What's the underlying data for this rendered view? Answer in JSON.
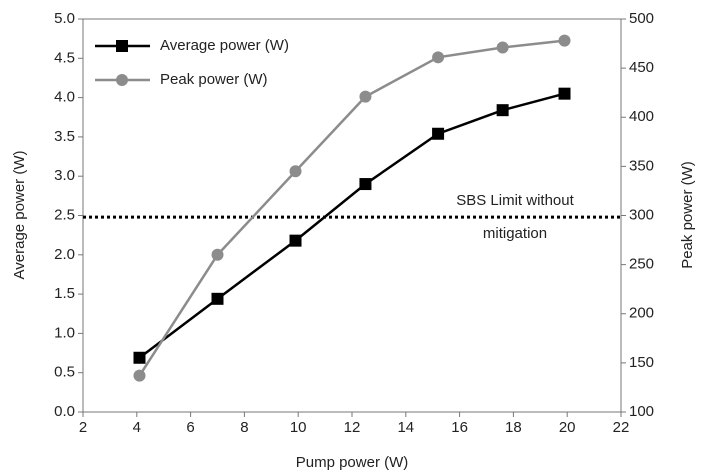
{
  "chart_data": {
    "type": "line",
    "x_label": "Pump power (W)",
    "y_label": "Average power (W)",
    "y2_label": "Peak power (W)",
    "xlim": [
      2,
      22
    ],
    "xticks": [
      2,
      4,
      6,
      8,
      10,
      12,
      14,
      16,
      18,
      20,
      22
    ],
    "ylim": [
      0,
      5
    ],
    "yticks": [
      {
        "value": 0,
        "label": "0.0"
      },
      0.5,
      {
        "value": 1,
        "label": "1.0"
      },
      1.5,
      {
        "value": 2,
        "label": "2.0"
      },
      2.5,
      {
        "value": 3,
        "label": "3.0"
      },
      3.5,
      {
        "value": 4,
        "label": "4.0"
      },
      4.5,
      {
        "value": 5,
        "label": "5.0"
      }
    ],
    "y2lim": [
      100,
      500
    ],
    "y2ticks": [
      100,
      150,
      200,
      250,
      300,
      350,
      400,
      450,
      500
    ],
    "legend": "upper left",
    "series": [
      {
        "name": "Average power (W)",
        "color": "#000000",
        "marker": "square",
        "x": [
          4.1,
          7.0,
          9.9,
          12.5,
          15.2,
          17.6,
          19.9
        ],
        "values": [
          0.69,
          1.44,
          2.18,
          2.9,
          3.54,
          3.84,
          4.05
        ]
      },
      {
        "name": "Peak power (W)",
        "color": "#8c8c8c",
        "marker": "circle",
        "axis": "y2",
        "x": [
          4.1,
          7.0,
          9.9,
          12.5,
          15.2,
          17.6,
          19.9
        ],
        "values": [
          137,
          260,
          345,
          421,
          461,
          471,
          478
        ]
      }
    ],
    "reference_line": {
      "value": 2.48,
      "label": [
        "SBS Limit without",
        "mitigation"
      ]
    }
  }
}
